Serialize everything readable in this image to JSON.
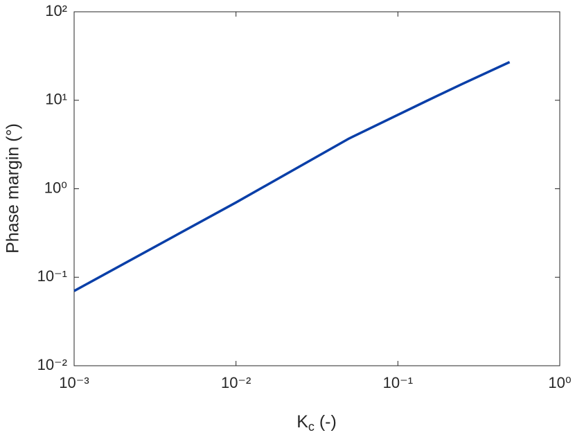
{
  "chart_data": {
    "type": "line",
    "xlabel": {
      "main": "K",
      "sub": "c",
      "rest": " (-)"
    },
    "ylabel": "Phase margin (°)",
    "x": [
      0.001,
      0.01,
      0.05,
      0.15,
      0.25,
      0.49
    ],
    "series": [
      {
        "name": "Phase margin",
        "color": "#0a3fa8",
        "values": [
          0.07,
          0.7,
          3.7,
          9.8,
          15.3,
          27
        ]
      }
    ],
    "xscale": "log",
    "yscale": "log",
    "xlim": [
      0.001,
      1
    ],
    "ylim": [
      0.01,
      100
    ],
    "xticks": [
      {
        "value": 0.001,
        "label": "10⁻³"
      },
      {
        "value": 0.01,
        "label": "10⁻²"
      },
      {
        "value": 0.1,
        "label": "10⁻¹"
      },
      {
        "value": 1,
        "label": "10⁰"
      }
    ],
    "yticks": [
      {
        "value": 0.01,
        "label": "10⁻²"
      },
      {
        "value": 0.1,
        "label": "10⁻¹"
      },
      {
        "value": 1,
        "label": "10⁰"
      },
      {
        "value": 10,
        "label": "10¹"
      },
      {
        "value": 100,
        "label": "10²"
      }
    ],
    "grid": false
  }
}
